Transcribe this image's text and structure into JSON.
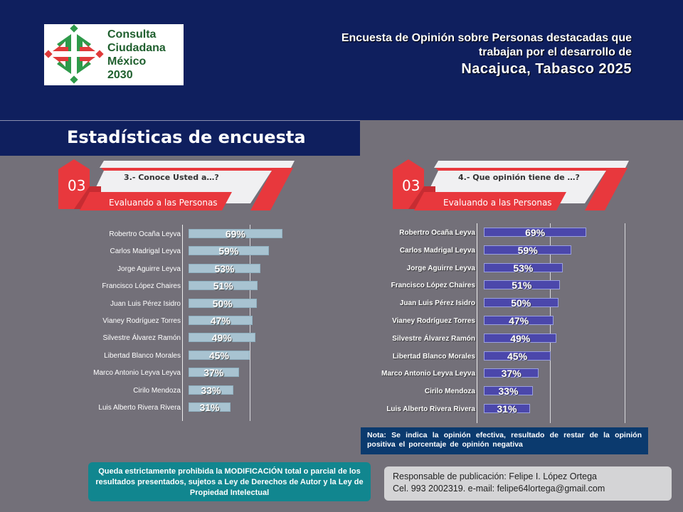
{
  "header": {
    "logo": {
      "lines": [
        "Consulta",
        "Ciudadana",
        "México",
        "2030"
      ],
      "icon": "consulta-ciudadana-logo-icon"
    },
    "title_line1": "Encuesta de Opinión sobre Personas destacadas que",
    "title_line2": "trabajan por el desarrollo de",
    "title_line3": "Nacajuca, Tabasco  2025"
  },
  "section_title": "Estadísticas de encuesta",
  "panels": [
    {
      "number": "03",
      "question": "3.- Conoce Usted a…?",
      "subtitle": "Evaluando a las Personas"
    },
    {
      "number": "03",
      "question": "4.- Que opinión tiene de …?",
      "subtitle": "Evaluando  a las Personas"
    }
  ],
  "colors": {
    "header_bg": "#0f1f5e",
    "accent_red": "#e8383d",
    "bar_left": "#a8c3d1",
    "bar_right": "#4b47ab",
    "page_bg": "#737079",
    "note_bg": "#0b3a6e",
    "warn_bg": "#11868f"
  },
  "chart_data": [
    {
      "type": "bar",
      "orientation": "horizontal",
      "title": "3.- Conoce Usted a…?",
      "categories": [
        "Robertro Ocaña Leyva",
        "Carlos Madrigal Leyva",
        "Jorge Aguirre Leyva",
        "Francisco López Chaires",
        "Juan Luis Pérez Isidro",
        "Vianey Rodríguez Torres",
        "Silvestre Álvarez Ramón",
        "Libertad Blanco Morales",
        "Marco Antonio Leyva Leyva",
        "Cirilo Mendoza",
        "Luis Alberto Rivera Rivera"
      ],
      "values": [
        69,
        59,
        53,
        51,
        50,
        47,
        49,
        45,
        37,
        33,
        31
      ],
      "data_labels": [
        "69%",
        "59%",
        "53%",
        "51%",
        "50%",
        "47%",
        "49%",
        "45%",
        "37%",
        "33%",
        "31%"
      ],
      "unit": "%",
      "xlim": [
        0,
        100
      ],
      "grid": true
    },
    {
      "type": "bar",
      "orientation": "horizontal",
      "title": "4.- Que opinión tiene de …?",
      "categories": [
        "Robertro Ocaña Leyva",
        "Carlos Madrigal Leyva",
        "Jorge Aguirre Leyva",
        "Francisco López Chaires",
        "Juan Luis Pérez Isidro",
        "Vianey Rodríguez Torres",
        "Silvestre Álvarez Ramón",
        "Libertad Blanco Morales",
        "Marco Antonio Leyva Leyva",
        "Cirilo Mendoza",
        "Luis Alberto Rivera Rivera"
      ],
      "values": [
        69,
        59,
        53,
        51,
        50,
        47,
        49,
        45,
        37,
        33,
        31
      ],
      "data_labels": [
        "69%",
        "59%",
        "53%",
        "51%",
        "50%",
        "47%",
        "49%",
        "45%",
        "37%",
        "33%",
        "31%"
      ],
      "unit": "%",
      "xlim": [
        0,
        100
      ],
      "grid": true
    }
  ],
  "note": "Nota: Se indica la opinión efectiva, resultado de restar de la opinión positiva el porcentaje de opinión negativa",
  "warning": "Queda estrictamente prohibida la MODIFICACIÓN  total o parcial de los resultados presentados, sujetos a Ley de Derechos de Autor y la Ley de Propiedad Intelectual",
  "contact": {
    "line1": "Responsable de publicación: Felipe I. López Ortega",
    "line2": "Cel. 993 2002319. e-mail: felipe64lortega@gmail.com"
  }
}
